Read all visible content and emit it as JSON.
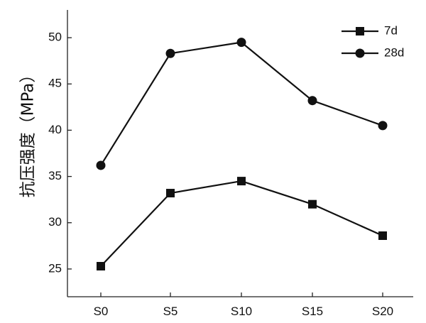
{
  "chart_data": {
    "type": "line",
    "categories": [
      "S0",
      "S5",
      "S10",
      "S15",
      "S20"
    ],
    "ylabel": "抗压强度（MPa）",
    "xlabel": "",
    "title": "",
    "ylim": [
      22,
      53
    ],
    "yticks": [
      25,
      30,
      35,
      40,
      45,
      50
    ],
    "grid": false,
    "legend_position": "top-right",
    "series": [
      {
        "name": "7d",
        "marker": "square",
        "color": "#111111",
        "values": [
          25.3,
          33.2,
          34.5,
          32.0,
          28.6
        ]
      },
      {
        "name": "28d",
        "marker": "circle",
        "color": "#111111",
        "values": [
          36.2,
          48.3,
          49.5,
          43.2,
          40.5
        ]
      }
    ]
  }
}
